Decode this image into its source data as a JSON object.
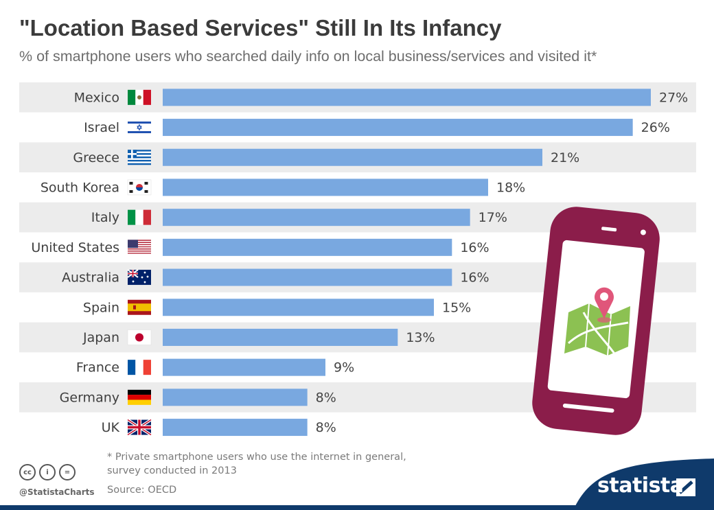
{
  "title": "\"Location Based Services\" Still In Its Infancy",
  "subtitle": "% of smartphone users who searched daily info on local business/services and visited it*",
  "chart_data": {
    "type": "bar",
    "orientation": "horizontal",
    "categories": [
      "Mexico",
      "Israel",
      "Greece",
      "South Korea",
      "Italy",
      "United States",
      "Australia",
      "Spain",
      "Japan",
      "France",
      "Germany",
      "UK"
    ],
    "values": [
      27,
      26,
      21,
      18,
      17,
      16,
      16,
      15,
      13,
      9,
      8,
      8
    ],
    "value_labels": [
      "27%",
      "26%",
      "21%",
      "18%",
      "17%",
      "16%",
      "16%",
      "15%",
      "13%",
      "9%",
      "8%",
      "8%"
    ],
    "xlim": [
      0,
      27
    ],
    "unit": "%",
    "bar_color": "#79a8e0",
    "stripe_color": "#ececec",
    "flag_icons": [
      "mexico-flag-icon",
      "israel-flag-icon",
      "greece-flag-icon",
      "south-korea-flag-icon",
      "italy-flag-icon",
      "united-states-flag-icon",
      "australia-flag-icon",
      "spain-flag-icon",
      "japan-flag-icon",
      "france-flag-icon",
      "germany-flag-icon",
      "uk-flag-icon"
    ]
  },
  "footnote": {
    "line1": "* Private smartphone users who use the internet in general,",
    "line2": "survey conducted in 2013"
  },
  "source": "Source: OECD",
  "handle": "@StatistaCharts",
  "brand": "statista",
  "license_icons": {
    "cc": "cc",
    "by": "i",
    "nd": "="
  },
  "colors": {
    "title": "#3b3b3b",
    "phone": "#8b1d4a",
    "map_green": "#8cc152",
    "pin": "#e0567a",
    "footer_band": "#0f3a6b"
  }
}
